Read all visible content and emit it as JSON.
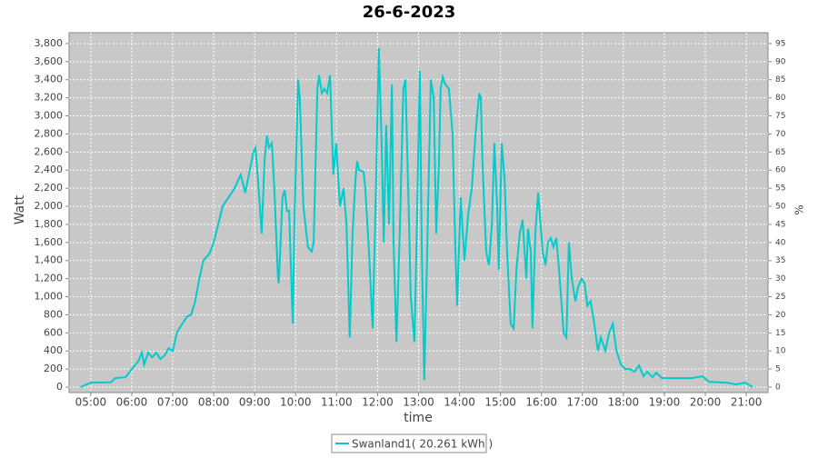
{
  "chart_data": {
    "type": "line",
    "title": "26-6-2023",
    "x_label": "time",
    "y_label": "Watt",
    "y2_label": "%",
    "grid": true,
    "legend": "bottom",
    "xlim": [
      4.47,
      21.53
    ],
    "xticks": [
      {
        "value": 5,
        "label": "05:00"
      },
      {
        "value": 6,
        "label": "06:00"
      },
      {
        "value": 7,
        "label": "07:00"
      },
      {
        "value": 8,
        "label": "08:00"
      },
      {
        "value": 9,
        "label": "09:00"
      },
      {
        "value": 10,
        "label": "10:00"
      },
      {
        "value": 11,
        "label": "11:00"
      },
      {
        "value": 12,
        "label": "12:00"
      },
      {
        "value": 13,
        "label": "13:00"
      },
      {
        "value": 14,
        "label": "14:00"
      },
      {
        "value": 15,
        "label": "15:00"
      },
      {
        "value": 16,
        "label": "16:00"
      },
      {
        "value": 17,
        "label": "17:00"
      },
      {
        "value": 18,
        "label": "18:00"
      },
      {
        "value": 19,
        "label": "19:00"
      },
      {
        "value": 20,
        "label": "20:00"
      },
      {
        "value": 21,
        "label": "21:00"
      }
    ],
    "ylim": [
      -60,
      3920
    ],
    "yticks": [
      0,
      200,
      400,
      600,
      800,
      {
        "value": 1000,
        "label": "1,000"
      },
      {
        "value": 1200,
        "label": "1,200"
      },
      {
        "value": 1400,
        "label": "1,400"
      },
      {
        "value": 1600,
        "label": "1,600"
      },
      {
        "value": 1800,
        "label": "1,800"
      },
      {
        "value": 2000,
        "label": "2,000"
      },
      {
        "value": 2200,
        "label": "2,200"
      },
      {
        "value": 2400,
        "label": "2,400"
      },
      {
        "value": 2600,
        "label": "2,600"
      },
      {
        "value": 2800,
        "label": "2,800"
      },
      {
        "value": 3000,
        "label": "3,000"
      },
      {
        "value": 3200,
        "label": "3,200"
      },
      {
        "value": 3400,
        "label": "3,400"
      },
      {
        "value": 3600,
        "label": "3,600"
      },
      {
        "value": 3800,
        "label": "3,800"
      }
    ],
    "y2lim": [
      -1.5,
      98
    ],
    "y2ticks": [
      0,
      5,
      10,
      15,
      20,
      25,
      30,
      35,
      40,
      45,
      50,
      55,
      60,
      65,
      70,
      75,
      80,
      85,
      90,
      95
    ],
    "x": [
      4.75,
      5.0,
      5.5,
      5.6,
      5.85,
      6.0,
      6.15,
      6.25,
      6.3,
      6.4,
      6.5,
      6.6,
      6.7,
      6.8,
      6.9,
      7.0,
      7.1,
      7.2,
      7.35,
      7.45,
      7.55,
      7.65,
      7.75,
      7.9,
      8.0,
      8.1,
      8.22,
      8.51,
      8.66,
      8.77,
      8.97,
      9.02,
      9.08,
      9.17,
      9.24,
      9.3,
      9.35,
      9.42,
      9.48,
      9.57,
      9.59,
      9.68,
      9.73,
      9.79,
      9.84,
      9.93,
      9.97,
      10.06,
      10.1,
      10.19,
      10.3,
      10.39,
      10.44,
      10.53,
      10.57,
      10.64,
      10.7,
      10.77,
      10.84,
      10.92,
      10.99,
      11.08,
      11.17,
      11.24,
      11.32,
      11.39,
      11.46,
      11.5,
      11.55,
      11.66,
      11.7,
      11.79,
      11.88,
      11.95,
      12.03,
      12.1,
      12.15,
      12.21,
      12.28,
      12.35,
      12.39,
      12.46,
      12.54,
      12.63,
      12.68,
      12.77,
      12.81,
      12.9,
      12.97,
      13.03,
      13.08,
      13.14,
      13.21,
      13.3,
      13.37,
      13.43,
      13.5,
      13.54,
      13.59,
      13.65,
      13.74,
      13.83,
      13.9,
      13.94,
      14.03,
      14.12,
      14.21,
      14.3,
      14.39,
      14.48,
      14.52,
      14.56,
      14.65,
      14.72,
      14.79,
      14.85,
      14.92,
      14.96,
      15.03,
      15.1,
      15.16,
      15.25,
      15.32,
      15.39,
      15.47,
      15.54,
      15.63,
      15.67,
      15.74,
      15.78,
      15.85,
      15.92,
      15.98,
      16.03,
      16.1,
      16.16,
      16.23,
      16.29,
      16.36,
      16.43,
      16.54,
      16.61,
      16.67,
      16.74,
      16.83,
      16.89,
      16.98,
      17.05,
      17.12,
      17.2,
      17.29,
      17.38,
      17.45,
      17.56,
      17.65,
      17.74,
      17.83,
      17.94,
      18.05,
      18.16,
      18.27,
      18.38,
      18.49,
      18.58,
      18.71,
      18.8,
      18.94,
      19.65,
      19.93,
      20.09,
      20.53,
      20.75,
      20.98,
      21.15
    ],
    "series": [
      {
        "name": "Swanland1( 20.261 kWh )",
        "color": "#00cccc",
        "values": [
          0,
          50,
          55,
          100,
          110,
          200,
          280,
          380,
          250,
          380,
          330,
          380,
          310,
          350,
          430,
          400,
          600,
          680,
          780,
          800,
          950,
          1200,
          1400,
          1480,
          1600,
          1780,
          2000,
          2200,
          2350,
          2150,
          2600,
          2650,
          2300,
          1700,
          2500,
          2780,
          2650,
          2700,
          2200,
          1200,
          1150,
          2100,
          2180,
          1950,
          1950,
          700,
          1800,
          3400,
          3200,
          2000,
          1550,
          1500,
          1600,
          3300,
          3450,
          3250,
          3300,
          3250,
          3450,
          2350,
          2700,
          2000,
          2200,
          1800,
          550,
          1700,
          2300,
          2500,
          2400,
          2380,
          2200,
          1500,
          650,
          2000,
          3750,
          2700,
          1600,
          2900,
          1800,
          3350,
          1600,
          500,
          1700,
          3300,
          3400,
          1800,
          1000,
          500,
          2000,
          3500,
          1500,
          80,
          1500,
          3400,
          3200,
          1700,
          2500,
          3300,
          3430,
          3350,
          3300,
          2800,
          1500,
          900,
          2100,
          1400,
          1900,
          2200,
          2800,
          3250,
          3200,
          2500,
          1500,
          1350,
          1800,
          2700,
          2000,
          1300,
          2700,
          2300,
          1500,
          700,
          650,
          1300,
          1700,
          1850,
          1200,
          1750,
          1500,
          650,
          1700,
          2150,
          1800,
          1500,
          1350,
          1600,
          1650,
          1550,
          1650,
          1300,
          600,
          550,
          1600,
          1200,
          950,
          1100,
          1200,
          1150,
          900,
          950,
          700,
          400,
          550,
          400,
          600,
          700,
          400,
          250,
          200,
          200,
          170,
          240,
          120,
          170,
          110,
          160,
          100,
          100,
          120,
          60,
          50,
          30,
          50,
          0
        ]
      }
    ]
  }
}
